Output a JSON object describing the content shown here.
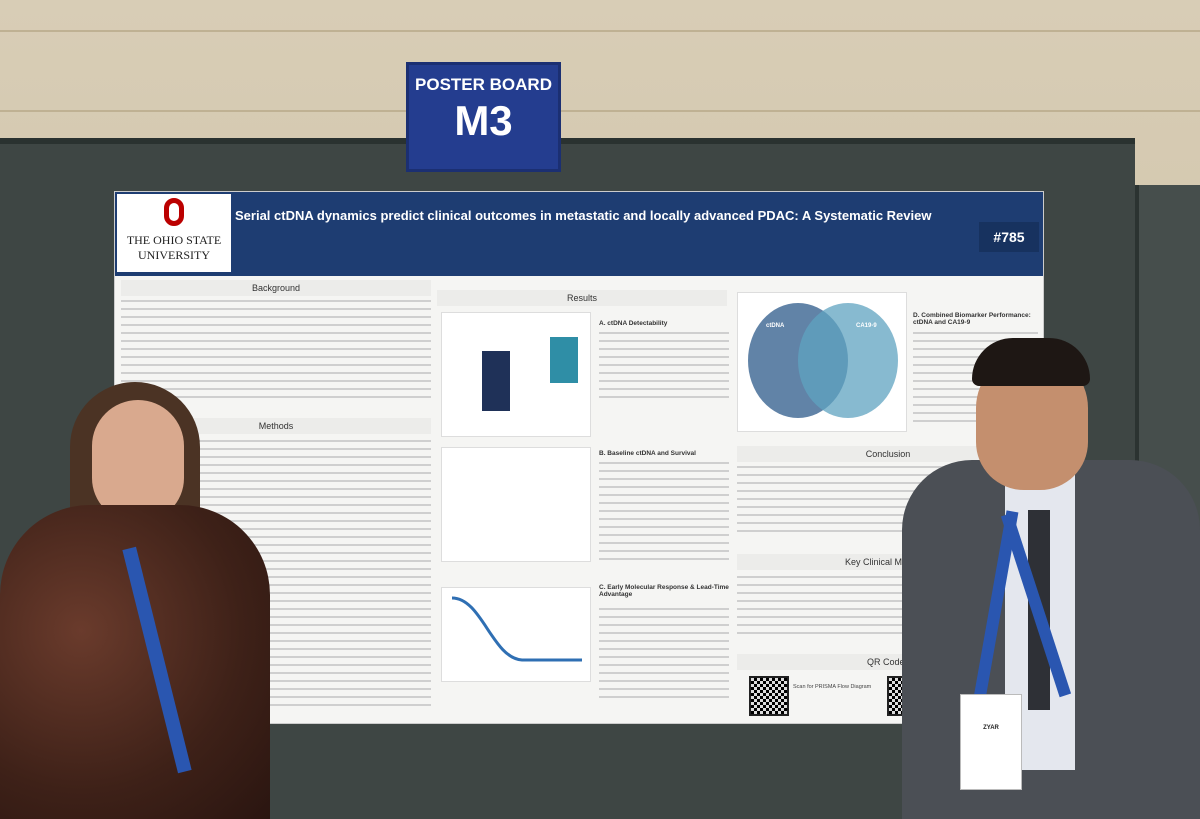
{
  "sign": {
    "line1": "POSTER BOARD",
    "line2": "M3"
  },
  "poster": {
    "university_line1": "THE OHIO STATE",
    "university_line2": "UNIVERSITY",
    "title": "Serial ctDNA dynamics predict clinical outcomes in metastatic and locally advanced PDAC: A Systematic Review",
    "number": "#785",
    "sections": {
      "background": "Background",
      "methods": "Methods",
      "results": "Results",
      "conclusion": "Conclusion",
      "key_message": "Key Clinical Message",
      "qr_codes": "QR Codes"
    },
    "subsections": {
      "a": "A. ctDNA Detectability",
      "b": "B. Baseline ctDNA and Survival",
      "c": "C. Early Molecular Response & Lead-Time Advantage",
      "d": "D. Combined Biomarker Performance: ctDNA and CA19-9"
    },
    "venn_left": "ctDNA",
    "venn_right": "CA19-9",
    "qr_caption": "Scan for PRISMA Flow Diagram"
  },
  "badge": {
    "name": "ZYAR"
  },
  "colors": {
    "header_blue": "#1e3d72",
    "osu_red": "#bb0000",
    "sign_blue": "#243d8f"
  }
}
